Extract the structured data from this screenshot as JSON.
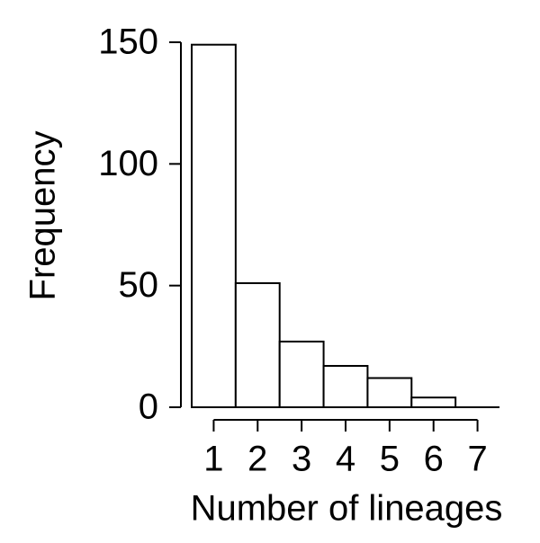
{
  "chart_data": {
    "type": "bar",
    "categories": [
      "1",
      "2",
      "3",
      "4",
      "5",
      "6",
      "7"
    ],
    "values": [
      149,
      51,
      27,
      17,
      12,
      4,
      0
    ],
    "color": "#ffffff",
    "x_label": "Number of lineages",
    "y_label": "Frequency",
    "ylim": [
      0,
      150
    ],
    "yticks": [
      0,
      50,
      100,
      150
    ]
  }
}
